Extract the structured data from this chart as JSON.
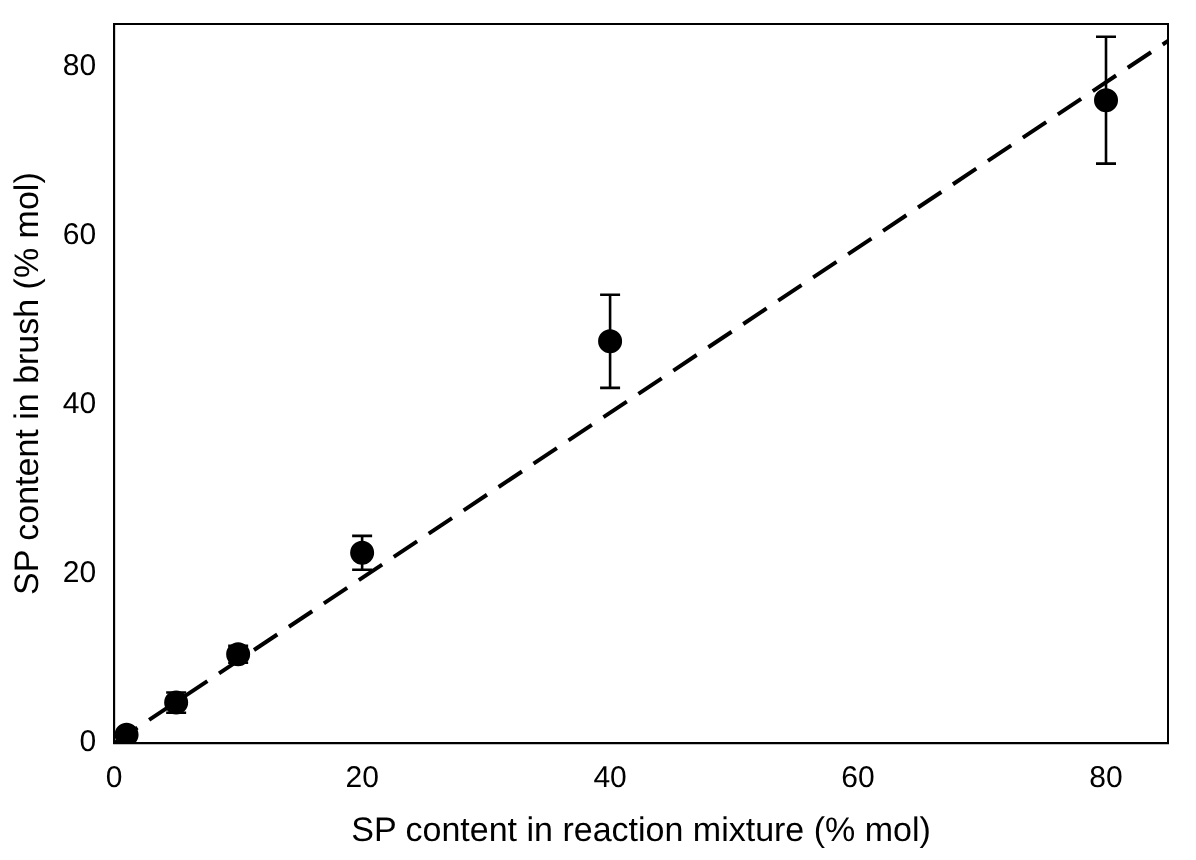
{
  "chart_data": {
    "type": "scatter",
    "xlabel": "SP content in reaction mixture (% mol)",
    "ylabel": "SP content in brush (% mol)",
    "x": [
      1,
      5,
      10,
      20,
      40,
      80
    ],
    "xlim": [
      0,
      85
    ],
    "xticks": [
      0,
      20,
      40,
      60,
      80
    ],
    "ylim": [
      0,
      85
    ],
    "yticks": [
      0,
      20,
      40,
      60,
      80
    ],
    "grid": false,
    "legend": false,
    "marker": "circle",
    "series": [
      {
        "color": "#000000",
        "values": [
          1,
          4.8,
          10.5,
          22.5,
          47.5,
          76
        ],
        "errors": [
          0.5,
          1.2,
          1,
          2,
          5.5,
          7.5
        ]
      },
      {
        "type": "line",
        "color": "#000000",
        "line_style": "dashed",
        "marker": "none",
        "x": [
          0,
          85
        ],
        "values": [
          0,
          83
        ]
      }
    ]
  }
}
